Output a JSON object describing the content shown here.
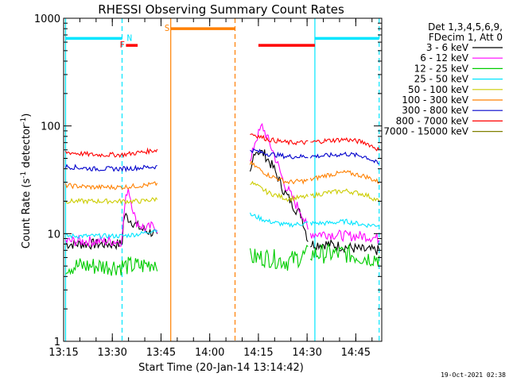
{
  "chart_data": {
    "type": "line",
    "title": "RHESSI Observing Summary Count Rates",
    "xlabel": "Start Time (20-Jan-14 13:14:42)",
    "ylabel_parts": [
      "Count Rate (s",
      "-1",
      " detector",
      "-1",
      ")"
    ],
    "ylabel": "Count Rate (s-1 detector-1)",
    "y_scale": "log",
    "ylim": [
      1,
      1000
    ],
    "xlim_minutes": [
      13.25,
      14.8833
    ],
    "x_ticks": [
      {
        "label": "13:15",
        "value": 13.25
      },
      {
        "label": "13:30",
        "value": 13.5
      },
      {
        "label": "13:45",
        "value": 13.75
      },
      {
        "label": "14:00",
        "value": 14.0
      },
      {
        "label": "14:15",
        "value": 14.25
      },
      {
        "label": "14:30",
        "value": 14.5
      },
      {
        "label": "14:45",
        "value": 14.75
      }
    ],
    "y_ticks": [
      {
        "label": "1",
        "value": 1
      },
      {
        "label": "10",
        "value": 10
      },
      {
        "label": "100",
        "value": 100
      },
      {
        "label": "1000",
        "value": 1000
      }
    ],
    "legend_header": [
      "Det 1,3,4,5,6,9,",
      "FDecim 1, Att 0"
    ],
    "legend_placement": "right",
    "series": [
      {
        "name": "3 - 6 keV",
        "color": "#000000",
        "x": [
          13.26,
          13.55,
          13.56,
          13.6,
          13.65,
          13.72,
          13.73,
          14.21,
          14.23,
          14.28,
          14.33,
          14.38,
          14.44,
          14.47,
          14.51,
          14.6,
          14.7,
          14.8,
          14.87
        ],
        "y": [
          8,
          8,
          15,
          13,
          11,
          10,
          9,
          35,
          60,
          55,
          40,
          25,
          17,
          15,
          8,
          8,
          7.5,
          7,
          7
        ]
      },
      {
        "name": "6 - 12 keV",
        "color": "#ff00ff",
        "x": [
          13.26,
          13.55,
          13.56,
          13.58,
          13.62,
          13.67,
          13.72,
          13.73,
          14.21,
          14.23,
          14.27,
          14.33,
          14.38,
          14.44,
          14.47,
          14.51,
          14.6,
          14.7,
          14.8,
          14.87
        ],
        "y": [
          8.5,
          8.5,
          16,
          28,
          13,
          11,
          12,
          11,
          45,
          70,
          100,
          55,
          30,
          19,
          16,
          10,
          10,
          9.5,
          9.5,
          9
        ]
      },
      {
        "name": "12 - 25 keV",
        "color": "#00cc00",
        "x": [
          13.26,
          13.4,
          13.55,
          13.65,
          13.73,
          14.21,
          14.3,
          14.4,
          14.51,
          14.6,
          14.7,
          14.8,
          14.87
        ],
        "y": [
          5,
          5,
          5,
          5,
          5.5,
          6,
          6,
          5.5,
          6.5,
          6.5,
          6.5,
          6,
          6
        ]
      },
      {
        "name": "25 - 50 keV",
        "color": "#00e5ff",
        "x": [
          13.26,
          13.4,
          13.55,
          13.65,
          13.73,
          14.21,
          14.3,
          14.4,
          14.5,
          14.6,
          14.7,
          14.8,
          14.87
        ],
        "y": [
          9.5,
          9.5,
          9.5,
          10,
          11,
          15,
          13,
          12,
          12.5,
          12.5,
          13,
          12,
          12
        ]
      },
      {
        "name": "50 - 100 keV",
        "color": "#cccc00",
        "x": [
          13.26,
          13.4,
          13.55,
          13.65,
          13.73,
          14.21,
          14.3,
          14.4,
          14.5,
          14.6,
          14.7,
          14.8,
          14.87
        ],
        "y": [
          20,
          20,
          20,
          20,
          21,
          30,
          24,
          21,
          22,
          24,
          25,
          23,
          20
        ]
      },
      {
        "name": "100 - 300 keV",
        "color": "#ff8000",
        "x": [
          13.26,
          13.4,
          13.55,
          13.65,
          13.73,
          14.21,
          14.3,
          14.4,
          14.5,
          14.6,
          14.7,
          14.8,
          14.87
        ],
        "y": [
          28,
          27,
          27,
          28,
          29,
          45,
          35,
          30,
          31,
          35,
          37,
          34,
          30
        ]
      },
      {
        "name": "300 - 800 keV",
        "color": "#0000cc",
        "x": [
          13.26,
          13.4,
          13.55,
          13.65,
          13.73,
          14.21,
          14.3,
          14.4,
          14.5,
          14.6,
          14.7,
          14.8,
          14.87
        ],
        "y": [
          42,
          40,
          40,
          41,
          42,
          60,
          55,
          52,
          52,
          53,
          55,
          52,
          44
        ]
      },
      {
        "name": "800 - 7000 keV",
        "color": "#ff0000",
        "x": [
          13.26,
          13.4,
          13.55,
          13.65,
          13.73,
          14.21,
          14.3,
          14.4,
          14.5,
          14.6,
          14.7,
          14.8,
          14.87
        ],
        "y": [
          57,
          54,
          54,
          57,
          60,
          85,
          75,
          70,
          70,
          73,
          75,
          70,
          60
        ]
      },
      {
        "name": "7000 - 15000 keV",
        "color": "#808000",
        "x": [],
        "y": []
      }
    ],
    "time_bars": [
      {
        "label": "N",
        "color": "#00e5ff",
        "x_start": 13.26,
        "x_end": 13.55,
        "level": 650
      },
      {
        "label": "F",
        "color": "#ff0000",
        "x_start": 13.57,
        "x_end": 13.63,
        "level": 560
      },
      {
        "label": "S",
        "color": "#ff8000",
        "x_start": 13.8,
        "x_end": 14.13,
        "level": 800
      },
      {
        "label": "",
        "color": "#ff0000",
        "x_start": 14.25,
        "x_end": 14.54,
        "level": 560
      },
      {
        "label": "",
        "color": "#00e5ff",
        "x_start": 14.54,
        "x_end": 14.87,
        "level": 650
      }
    ],
    "vlines": [
      {
        "x": 13.26,
        "color": "#00e5ff",
        "style": "solid"
      },
      {
        "x": 13.55,
        "color": "#00e5ff",
        "style": "dashed"
      },
      {
        "x": 13.8,
        "color": "#ff8000",
        "style": "solid"
      },
      {
        "x": 14.13,
        "color": "#ff8000",
        "style": "dashed"
      },
      {
        "x": 14.54,
        "color": "#00e5ff",
        "style": "solid"
      },
      {
        "x": 14.87,
        "color": "#00e5ff",
        "style": "dashed"
      }
    ]
  },
  "footer": {
    "timestamp": "19-Oct-2021 02:38"
  }
}
